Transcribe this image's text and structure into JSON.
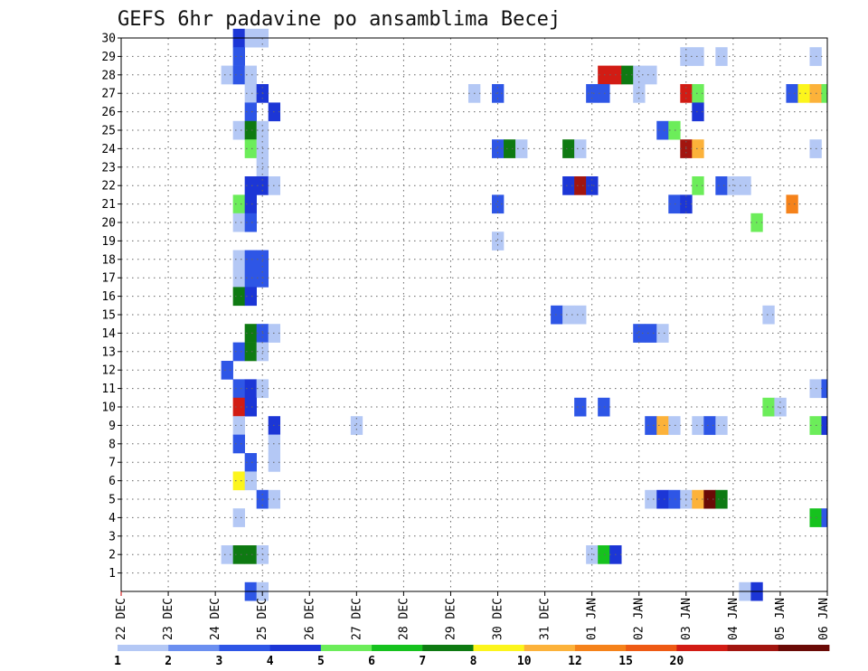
{
  "chart_data": {
    "type": "heatmap",
    "title": "GEFS 6hr padavine po ansamblima Becej",
    "xlabel": "",
    "ylabel": "",
    "x_tick_labels": [
      "22 DEC",
      "23 DEC",
      "24 DEC",
      "25 DEC",
      "26 DEC",
      "27 DEC",
      "28 DEC",
      "29 DEC",
      "30 DEC",
      "31 DEC",
      "01 JAN",
      "02 JAN",
      "03 JAN",
      "04 JAN",
      "05 JAN",
      "06 JAN"
    ],
    "y_tick_labels": [
      "1",
      "2",
      "3",
      "4",
      "5",
      "6",
      "7",
      "8",
      "9",
      "10",
      "11",
      "12",
      "13",
      "14",
      "15",
      "16",
      "17",
      "18",
      "19",
      "20",
      "21",
      "22",
      "23",
      "24",
      "25",
      "26",
      "27",
      "28",
      "29",
      "30"
    ],
    "x_range_steps": [
      0,
      60
    ],
    "y_range_members": [
      0,
      30
    ],
    "step_hours": 6,
    "colorbar": {
      "tick_labels": [
        "1",
        "2",
        "3",
        "4",
        "5",
        "6",
        "7",
        "8",
        "10",
        "12",
        "15",
        "20"
      ],
      "colors": [
        "#b4c8f5",
        "#6b8ff0",
        "#2e56e6",
        "#1c36d6",
        "#6ced5a",
        "#16c21e",
        "#0e7a12",
        "#fcf51c",
        "#fcb23a",
        "#f5821a",
        "#ee5a14",
        "#d21c14",
        "#a2150f",
        "#6a0a06"
      ]
    },
    "cells": [
      {
        "m": 30,
        "s": 10,
        "c": 3
      },
      {
        "m": 30,
        "s": 11,
        "c": 0
      },
      {
        "m": 30,
        "s": 12,
        "c": 0
      },
      {
        "m": 29,
        "s": 10,
        "c": 2
      },
      {
        "m": 29,
        "s": 48,
        "c": 0
      },
      {
        "m": 29,
        "s": 49,
        "c": 0
      },
      {
        "m": 29,
        "s": 51,
        "c": 0
      },
      {
        "m": 29,
        "s": 59,
        "c": 0
      },
      {
        "m": 28,
        "s": 9,
        "c": 0
      },
      {
        "m": 28,
        "s": 10,
        "c": 2
      },
      {
        "m": 28,
        "s": 11,
        "c": 0
      },
      {
        "m": 28,
        "s": 41,
        "c": 11
      },
      {
        "m": 28,
        "s": 42,
        "c": 11
      },
      {
        "m": 28,
        "s": 43,
        "c": 6
      },
      {
        "m": 28,
        "s": 44,
        "c": 0
      },
      {
        "m": 28,
        "s": 45,
        "c": 0
      },
      {
        "m": 27,
        "s": 11,
        "c": 0
      },
      {
        "m": 27,
        "s": 12,
        "c": 3
      },
      {
        "m": 27,
        "s": 30,
        "c": 0
      },
      {
        "m": 27,
        "s": 32,
        "c": 2
      },
      {
        "m": 27,
        "s": 40,
        "c": 2
      },
      {
        "m": 27,
        "s": 41,
        "c": 2
      },
      {
        "m": 27,
        "s": 44,
        "c": 0
      },
      {
        "m": 27,
        "s": 48,
        "c": 11
      },
      {
        "m": 27,
        "s": 49,
        "c": 4
      },
      {
        "m": 27,
        "s": 57,
        "c": 2
      },
      {
        "m": 27,
        "s": 58,
        "c": 7
      },
      {
        "m": 27,
        "s": 59,
        "c": 8
      },
      {
        "m": 27,
        "s": 60,
        "c": 4
      },
      {
        "m": 26,
        "s": 11,
        "c": 2
      },
      {
        "m": 26,
        "s": 13,
        "c": 3
      },
      {
        "m": 26,
        "s": 49,
        "c": 3
      },
      {
        "m": 25,
        "s": 10,
        "c": 0
      },
      {
        "m": 25,
        "s": 11,
        "c": 6
      },
      {
        "m": 25,
        "s": 12,
        "c": 0
      },
      {
        "m": 25,
        "s": 46,
        "c": 2
      },
      {
        "m": 25,
        "s": 47,
        "c": 4
      },
      {
        "m": 24,
        "s": 11,
        "c": 4
      },
      {
        "m": 24,
        "s": 12,
        "c": 0
      },
      {
        "m": 24,
        "s": 32,
        "c": 2
      },
      {
        "m": 24,
        "s": 33,
        "c": 6
      },
      {
        "m": 24,
        "s": 34,
        "c": 0
      },
      {
        "m": 24,
        "s": 38,
        "c": 6
      },
      {
        "m": 24,
        "s": 39,
        "c": 0
      },
      {
        "m": 24,
        "s": 48,
        "c": 12
      },
      {
        "m": 24,
        "s": 49,
        "c": 8
      },
      {
        "m": 24,
        "s": 59,
        "c": 0
      },
      {
        "m": 23,
        "s": 12,
        "c": 0
      },
      {
        "m": 22,
        "s": 11,
        "c": 3
      },
      {
        "m": 22,
        "s": 12,
        "c": 3
      },
      {
        "m": 22,
        "s": 13,
        "c": 0
      },
      {
        "m": 22,
        "s": 38,
        "c": 3
      },
      {
        "m": 22,
        "s": 39,
        "c": 12
      },
      {
        "m": 22,
        "s": 40,
        "c": 3
      },
      {
        "m": 22,
        "s": 49,
        "c": 4
      },
      {
        "m": 22,
        "s": 51,
        "c": 2
      },
      {
        "m": 22,
        "s": 52,
        "c": 0
      },
      {
        "m": 22,
        "s": 53,
        "c": 0
      },
      {
        "m": 21,
        "s": 10,
        "c": 4
      },
      {
        "m": 21,
        "s": 11,
        "c": 3
      },
      {
        "m": 21,
        "s": 32,
        "c": 2
      },
      {
        "m": 21,
        "s": 47,
        "c": 2
      },
      {
        "m": 21,
        "s": 48,
        "c": 3
      },
      {
        "m": 21,
        "s": 57,
        "c": 9
      },
      {
        "m": 20,
        "s": 10,
        "c": 0
      },
      {
        "m": 20,
        "s": 11,
        "c": 2
      },
      {
        "m": 20,
        "s": 54,
        "c": 4
      },
      {
        "m": 19,
        "s": 32,
        "c": 0
      },
      {
        "m": 18,
        "s": 10,
        "c": 0
      },
      {
        "m": 18,
        "s": 11,
        "c": 2
      },
      {
        "m": 18,
        "s": 12,
        "c": 2
      },
      {
        "m": 17,
        "s": 10,
        "c": 0
      },
      {
        "m": 17,
        "s": 11,
        "c": 2
      },
      {
        "m": 17,
        "s": 12,
        "c": 2
      },
      {
        "m": 16,
        "s": 10,
        "c": 6
      },
      {
        "m": 16,
        "s": 11,
        "c": 3
      },
      {
        "m": 15,
        "s": 37,
        "c": 2
      },
      {
        "m": 15,
        "s": 38,
        "c": 0
      },
      {
        "m": 15,
        "s": 39,
        "c": 0
      },
      {
        "m": 15,
        "s": 55,
        "c": 0
      },
      {
        "m": 14,
        "s": 11,
        "c": 6
      },
      {
        "m": 14,
        "s": 12,
        "c": 2
      },
      {
        "m": 14,
        "s": 13,
        "c": 0
      },
      {
        "m": 14,
        "s": 44,
        "c": 2
      },
      {
        "m": 14,
        "s": 45,
        "c": 2
      },
      {
        "m": 14,
        "s": 46,
        "c": 0
      },
      {
        "m": 13,
        "s": 10,
        "c": 2
      },
      {
        "m": 13,
        "s": 11,
        "c": 6
      },
      {
        "m": 13,
        "s": 12,
        "c": 0
      },
      {
        "m": 12,
        "s": 9,
        "c": 2
      },
      {
        "m": 11,
        "s": 10,
        "c": 2
      },
      {
        "m": 11,
        "s": 11,
        "c": 3
      },
      {
        "m": 11,
        "s": 12,
        "c": 0
      },
      {
        "m": 11,
        "s": 59,
        "c": 0
      },
      {
        "m": 11,
        "s": 60,
        "c": 2
      },
      {
        "m": 10,
        "s": 10,
        "c": 11
      },
      {
        "m": 10,
        "s": 11,
        "c": 3
      },
      {
        "m": 10,
        "s": 39,
        "c": 2
      },
      {
        "m": 10,
        "s": 41,
        "c": 2
      },
      {
        "m": 10,
        "s": 55,
        "c": 4
      },
      {
        "m": 10,
        "s": 56,
        "c": 0
      },
      {
        "m": 9,
        "s": 10,
        "c": 0
      },
      {
        "m": 9,
        "s": 13,
        "c": 3
      },
      {
        "m": 9,
        "s": 20,
        "c": 0
      },
      {
        "m": 9,
        "s": 45,
        "c": 2
      },
      {
        "m": 9,
        "s": 46,
        "c": 8
      },
      {
        "m": 9,
        "s": 47,
        "c": 0
      },
      {
        "m": 9,
        "s": 49,
        "c": 0
      },
      {
        "m": 9,
        "s": 50,
        "c": 2
      },
      {
        "m": 9,
        "s": 51,
        "c": 0
      },
      {
        "m": 9,
        "s": 59,
        "c": 4
      },
      {
        "m": 9,
        "s": 60,
        "c": 3
      },
      {
        "m": 8,
        "s": 10,
        "c": 2
      },
      {
        "m": 8,
        "s": 13,
        "c": 0
      },
      {
        "m": 7,
        "s": 11,
        "c": 2
      },
      {
        "m": 7,
        "s": 13,
        "c": 0
      },
      {
        "m": 6,
        "s": 10,
        "c": 7
      },
      {
        "m": 6,
        "s": 11,
        "c": 0
      },
      {
        "m": 5,
        "s": 12,
        "c": 2
      },
      {
        "m": 5,
        "s": 13,
        "c": 0
      },
      {
        "m": 5,
        "s": 45,
        "c": 0
      },
      {
        "m": 5,
        "s": 46,
        "c": 3
      },
      {
        "m": 5,
        "s": 47,
        "c": 2
      },
      {
        "m": 5,
        "s": 48,
        "c": 0
      },
      {
        "m": 5,
        "s": 49,
        "c": 8
      },
      {
        "m": 5,
        "s": 50,
        "c": 13
      },
      {
        "m": 5,
        "s": 51,
        "c": 6
      },
      {
        "m": 4,
        "s": 10,
        "c": 0
      },
      {
        "m": 4,
        "s": 59,
        "c": 5
      },
      {
        "m": 4,
        "s": 60,
        "c": 2
      },
      {
        "m": 2,
        "s": 9,
        "c": 0
      },
      {
        "m": 2,
        "s": 10,
        "c": 6
      },
      {
        "m": 2,
        "s": 11,
        "c": 6
      },
      {
        "m": 2,
        "s": 12,
        "c": 0
      },
      {
        "m": 2,
        "s": 40,
        "c": 0
      },
      {
        "m": 2,
        "s": 41,
        "c": 5
      },
      {
        "m": 2,
        "s": 42,
        "c": 3
      },
      {
        "m": 0,
        "s": 11,
        "c": 2
      },
      {
        "m": 0,
        "s": 12,
        "c": 0
      },
      {
        "m": 0,
        "s": 53,
        "c": 0
      },
      {
        "m": 0,
        "s": 54,
        "c": 3
      }
    ]
  }
}
